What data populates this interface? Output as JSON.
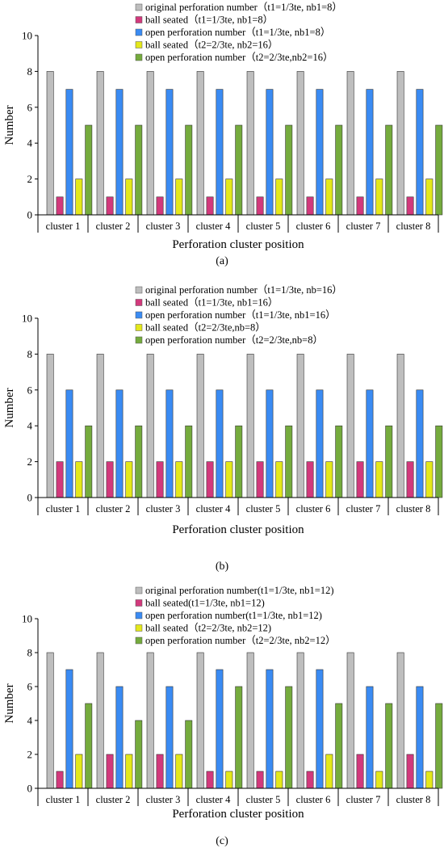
{
  "colors": {
    "original": "#bebebe",
    "ball1": "#d2397c",
    "open1": "#3a8bf3",
    "ball2": "#e4e81b",
    "open2": "#75ab3d"
  },
  "chart_data": [
    {
      "type": "bar",
      "panel_label": "(a)",
      "ylabel": "Number",
      "xlabel": "Perforation cluster position",
      "ylim": [
        0,
        10
      ],
      "yticks": [
        0,
        2,
        4,
        6,
        8,
        10
      ],
      "grid": false,
      "legend_position": "top",
      "categories": [
        "cluster 1",
        "cluster 2",
        "cluster 3",
        "cluster 4",
        "cluster 5",
        "cluster 6",
        "cluster 7",
        "cluster 8"
      ],
      "series": [
        {
          "name": "original perforation number（t1=1/3te, nb1=8）",
          "color_key": "original",
          "values": [
            8,
            8,
            8,
            8,
            8,
            8,
            8,
            8
          ]
        },
        {
          "name": "ball seated（t1=1/3te, nb1=8）",
          "color_key": "ball1",
          "values": [
            1,
            1,
            1,
            1,
            1,
            1,
            1,
            1
          ]
        },
        {
          "name": "open perforation number（t1=1/3te, nb1=8）",
          "color_key": "open1",
          "values": [
            7,
            7,
            7,
            7,
            7,
            7,
            7,
            7
          ]
        },
        {
          "name": "ball seated（t2=2/3te, nb2=16）",
          "color_key": "ball2",
          "values": [
            2,
            2,
            2,
            2,
            2,
            2,
            2,
            2
          ]
        },
        {
          "name": "open perforation number（t2=2/3te,nb2=16）",
          "color_key": "open2",
          "values": [
            5,
            5,
            5,
            5,
            5,
            5,
            5,
            5
          ]
        }
      ]
    },
    {
      "type": "bar",
      "panel_label": "(b)",
      "ylabel": "Number",
      "xlabel": "Perforation cluster position",
      "ylim": [
        0,
        10
      ],
      "yticks": [
        0,
        2,
        4,
        6,
        8,
        10
      ],
      "grid": false,
      "legend_position": "top",
      "categories": [
        "cluster 1",
        "cluster 2",
        "cluster 3",
        "cluster 4",
        "cluster 5",
        "cluster 6",
        "cluster 7",
        "cluster 8"
      ],
      "series": [
        {
          "name": "original perforation number（t1=1/3te, nb=16）",
          "color_key": "original",
          "values": [
            8,
            8,
            8,
            8,
            8,
            8,
            8,
            8
          ]
        },
        {
          "name": "ball seated（t1=1/3te, nb1=16）",
          "color_key": "ball1",
          "values": [
            2,
            2,
            2,
            2,
            2,
            2,
            2,
            2
          ]
        },
        {
          "name": "open perforation number（t1=1/3te, nb1=16）",
          "color_key": "open1",
          "values": [
            6,
            6,
            6,
            6,
            6,
            6,
            6,
            6
          ]
        },
        {
          "name": "ball seated（t2=2/3te,nb=8）",
          "color_key": "ball2",
          "values": [
            2,
            2,
            2,
            2,
            2,
            2,
            2,
            2
          ]
        },
        {
          "name": "open perforation number（t2=2/3te,nb=8）",
          "color_key": "open2",
          "values": [
            4,
            4,
            4,
            4,
            4,
            4,
            4,
            4
          ]
        }
      ]
    },
    {
      "type": "bar",
      "panel_label": "(c)",
      "ylabel": "Number",
      "xlabel": "Perforation cluster position",
      "ylim": [
        0,
        10
      ],
      "yticks": [
        0,
        2,
        4,
        6,
        8,
        10
      ],
      "grid": false,
      "legend_position": "top",
      "categories": [
        "cluster 1",
        "cluster 2",
        "cluster 3",
        "cluster 4",
        "cluster 5",
        "cluster 6",
        "cluster 7",
        "cluster 8"
      ],
      "series": [
        {
          "name": "original perforation number(t1=1/3te, nb1=12)",
          "color_key": "original",
          "values": [
            8,
            8,
            8,
            8,
            8,
            8,
            8,
            8
          ]
        },
        {
          "name": "ball seated(t1=1/3te, nb1=12)",
          "color_key": "ball1",
          "values": [
            1,
            2,
            2,
            1,
            1,
            1,
            2,
            2
          ]
        },
        {
          "name": "open perforation number(t1=1/3te, nb1=12)",
          "color_key": "open1",
          "values": [
            7,
            6,
            6,
            7,
            7,
            7,
            6,
            6
          ]
        },
        {
          "name": "ball seated（t2=2/3te, nb2=12)",
          "color_key": "ball2",
          "values": [
            2,
            2,
            2,
            1,
            1,
            2,
            1,
            1
          ]
        },
        {
          "name": "open perforation number（t2=2/3te, nb2=12）",
          "color_key": "open2",
          "values": [
            5,
            4,
            4,
            6,
            6,
            5,
            5,
            5
          ]
        }
      ]
    }
  ]
}
